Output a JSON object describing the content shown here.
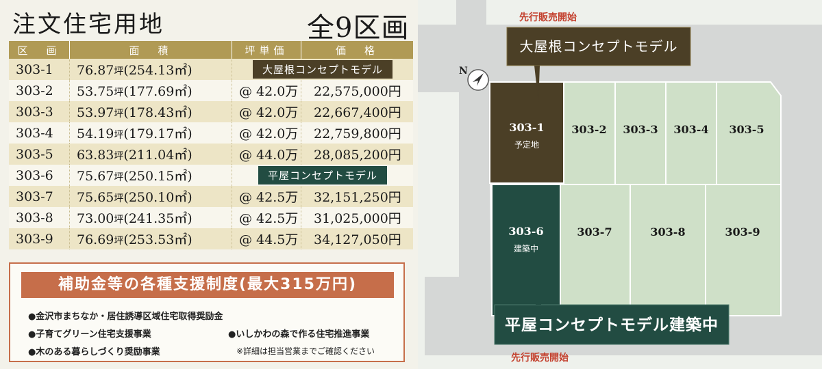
{
  "title": "注文住宅用地",
  "lot_count": "全9区画",
  "table": {
    "headers": [
      "区　画",
      "面　積",
      "坪単価",
      "価　格"
    ],
    "rows": [
      {
        "lot": "303-1",
        "tsubo": "76.87",
        "unit": "坪",
        "sqm": "(254.13㎡)",
        "unit_price": "",
        "price": "",
        "model": "大屋根コンセプトモデル"
      },
      {
        "lot": "303-2",
        "tsubo": "53.75",
        "unit": "坪",
        "sqm": "(177.69㎡)",
        "unit_price": "@ 42.0万",
        "price": "22,575,000円",
        "model": ""
      },
      {
        "lot": "303-3",
        "tsubo": "53.97",
        "unit": "坪",
        "sqm": "(178.43㎡)",
        "unit_price": "@ 42.0万",
        "price": "22,667,400円",
        "model": ""
      },
      {
        "lot": "303-4",
        "tsubo": "54.19",
        "unit": "坪",
        "sqm": "(179.17㎡)",
        "unit_price": "@ 42.0万",
        "price": "22,759,800円",
        "model": ""
      },
      {
        "lot": "303-5",
        "tsubo": "63.83",
        "unit": "坪",
        "sqm": "(211.04㎡)",
        "unit_price": "@ 44.0万",
        "price": "28,085,200円",
        "model": ""
      },
      {
        "lot": "303-6",
        "tsubo": "75.67",
        "unit": "坪",
        "sqm": "(250.15㎡)",
        "unit_price": "",
        "price": "",
        "model": "平屋コンセプトモデル"
      },
      {
        "lot": "303-7",
        "tsubo": "75.65",
        "unit": "坪",
        "sqm": "(250.10㎡)",
        "unit_price": "@ 42.5万",
        "price": "32,151,250円",
        "model": ""
      },
      {
        "lot": "303-8",
        "tsubo": "73.00",
        "unit": "坪",
        "sqm": "(241.35㎡)",
        "unit_price": "@ 42.5万",
        "price": "31,025,000円",
        "model": ""
      },
      {
        "lot": "303-9",
        "tsubo": "76.69",
        "unit": "坪",
        "sqm": "(253.53㎡)",
        "unit_price": "@ 44.5万",
        "price": "34,127,050円",
        "model": ""
      }
    ]
  },
  "subsidy": {
    "title": "補助金等の各種支援制度(最大315万円)",
    "items": [
      "●金沢市まちなか・居住誘導区域住宅取得奨励金",
      "●子育てグリーン住宅支援事業",
      "●いしかわの森で作る住宅推進事業",
      "●木のある暮らしづくり奨励事業"
    ],
    "note": "※詳細は担当営業までご確認ください"
  },
  "map": {
    "north_label": "N",
    "advance_top": "先行販売開始",
    "advance_bottom": "先行販売開始",
    "callout_top": "大屋根コンセプトモデル",
    "callout_bottom": "平屋コンセプトモデル建築中",
    "lots": [
      {
        "label": "303-1",
        "sub": "予定地"
      },
      {
        "label": "303-2",
        "sub": ""
      },
      {
        "label": "303-3",
        "sub": ""
      },
      {
        "label": "303-4",
        "sub": ""
      },
      {
        "label": "303-5",
        "sub": ""
      },
      {
        "label": "303-6",
        "sub": "建築中"
      },
      {
        "label": "303-7",
        "sub": ""
      },
      {
        "label": "303-8",
        "sub": ""
      },
      {
        "label": "303-9",
        "sub": ""
      }
    ]
  },
  "colors": {
    "header_gold": "#b09a55",
    "row_cream": "#ede5c6",
    "model_brown": "#4b3f26",
    "model_green": "#224c42",
    "lot_green": "#cfe0c8",
    "road_gray": "#d5d7d6",
    "subsidy_orange": "#c66e4a",
    "advance_red": "#c33f2c"
  }
}
